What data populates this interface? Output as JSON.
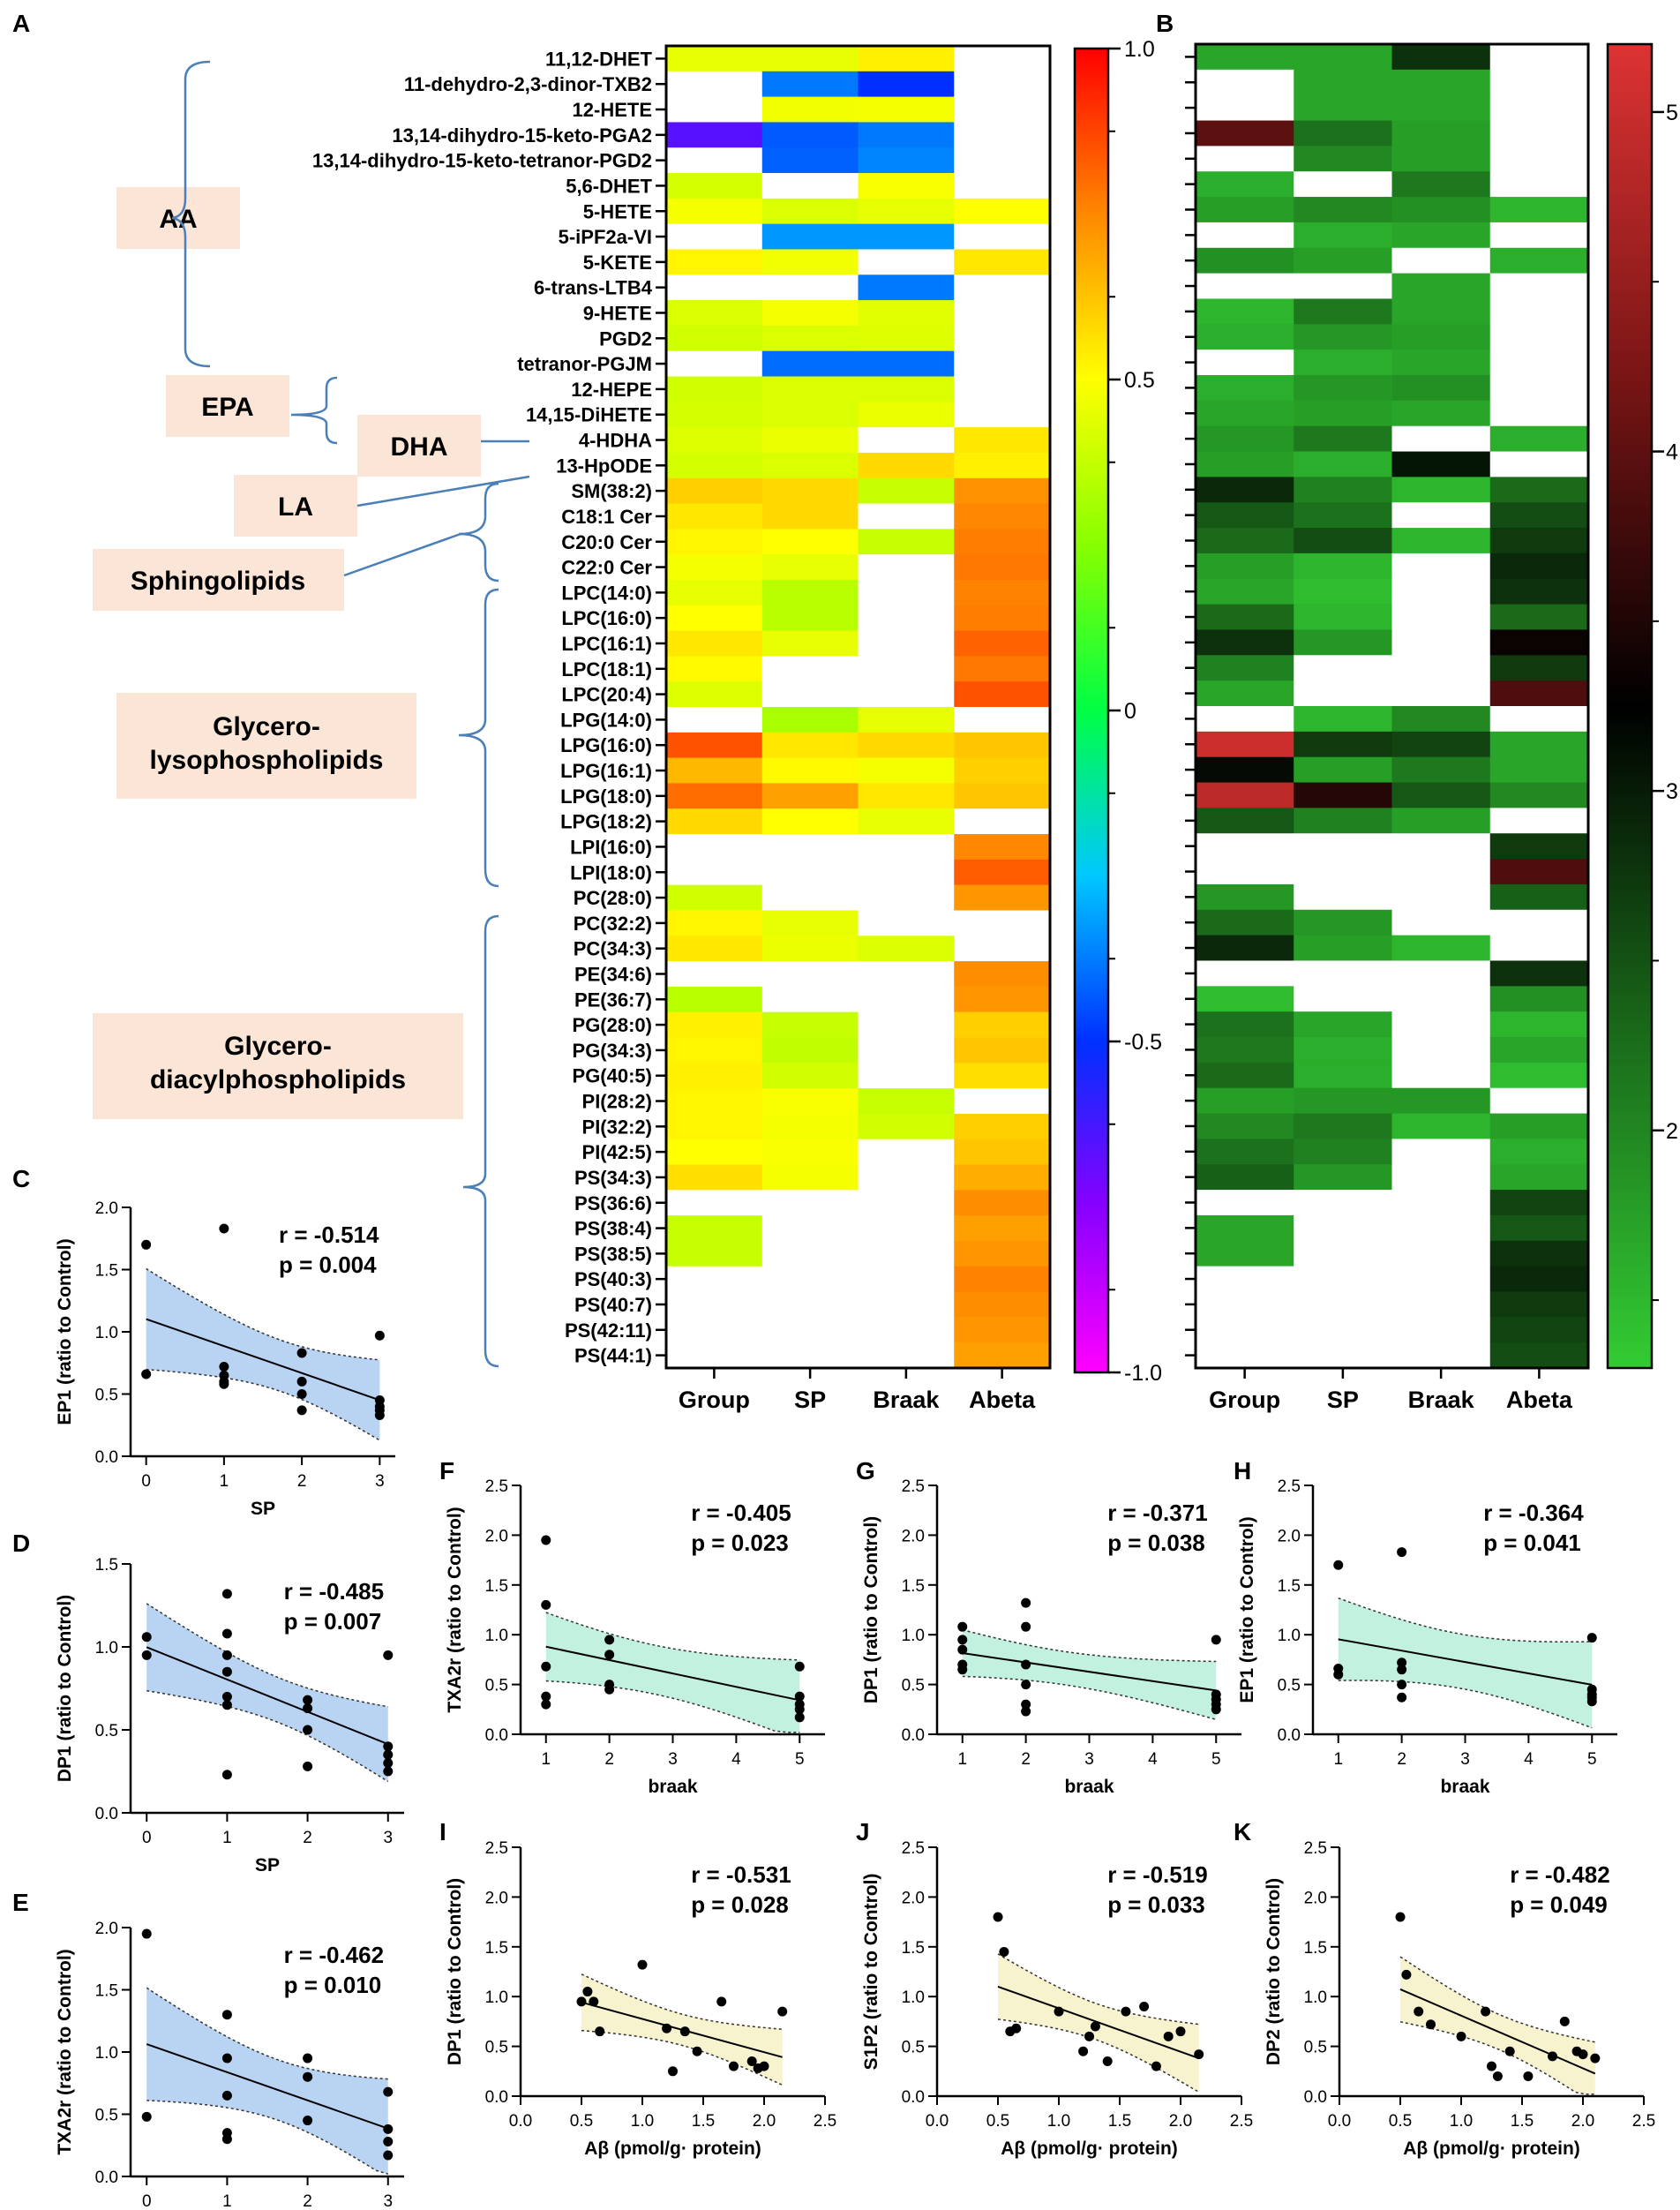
{
  "panel_letters": [
    "A",
    "B",
    "C",
    "D",
    "E",
    "F",
    "G",
    "H",
    "I",
    "J",
    "K"
  ],
  "heatmap": {
    "rows": [
      "11,12-DHET",
      "11-dehydro-2,3-dinor-TXB2",
      "12-HETE",
      "13,14-dihydro-15-keto-PGA2",
      "13,14-dihydro-15-keto-tetranor-PGD2",
      "5,6-DHET",
      "5-HETE",
      "5-iPF2a-VI",
      "5-KETE",
      "6-trans-LTB4",
      "9-HETE",
      "PGD2",
      "tetranor-PGJM",
      "12-HEPE",
      "14,15-DiHETE",
      "4-HDHA",
      "13-HpODE",
      "SM(38:2)",
      "C18:1 Cer",
      "C20:0 Cer",
      "C22:0 Cer",
      "LPC(14:0)",
      "LPC(16:0)",
      "LPC(16:1)",
      "LPC(18:1)",
      "LPC(20:4)",
      "LPG(14:0)",
      "LPG(16:0)",
      "LPG(16:1)",
      "LPG(18:0)",
      "LPG(18:2)",
      "LPI(16:0)",
      "LPI(18:0)",
      "PC(28:0)",
      "PC(32:2)",
      "PC(34:3)",
      "PE(34:6)",
      "PE(36:7)",
      "PG(28:0)",
      "PG(34:3)",
      "PG(40:5)",
      "PI(28:2)",
      "PI(32:2)",
      "PI(42:5)",
      "PS(34:3)",
      "PS(36:6)",
      "PS(38:4)",
      "PS(38:5)",
      "PS(40:3)",
      "PS(40:7)",
      "PS(42:11)",
      "PS(44:1)"
    ],
    "columns": [
      "Group",
      "SP",
      "Braak",
      "Abeta"
    ],
    "correlation_values": [
      [
        0.45,
        0.45,
        0.53,
        null
      ],
      [
        null,
        -0.38,
        -0.5,
        null
      ],
      [
        null,
        0.47,
        0.48,
        null
      ],
      [
        -0.66,
        -0.43,
        -0.38,
        null
      ],
      [
        null,
        -0.42,
        -0.36,
        null
      ],
      [
        0.41,
        null,
        0.49,
        null
      ],
      [
        0.48,
        0.42,
        0.45,
        0.5
      ],
      [
        null,
        -0.33,
        -0.33,
        null
      ],
      [
        0.52,
        0.47,
        null,
        0.55
      ],
      [
        null,
        null,
        -0.38,
        null
      ],
      [
        0.42,
        0.48,
        0.44,
        null
      ],
      [
        0.4,
        0.42,
        0.43,
        null
      ],
      [
        null,
        -0.4,
        -0.4,
        null
      ],
      [
        0.4,
        0.42,
        0.42,
        null
      ],
      [
        0.41,
        0.42,
        0.46,
        null
      ],
      [
        0.43,
        0.46,
        null,
        0.55
      ],
      [
        0.41,
        0.42,
        0.58,
        0.53
      ],
      [
        0.6,
        0.58,
        0.38,
        0.73
      ],
      [
        0.55,
        0.58,
        null,
        0.75
      ],
      [
        0.52,
        0.5,
        0.38,
        0.77
      ],
      [
        0.48,
        0.45,
        null,
        0.78
      ],
      [
        0.45,
        0.35,
        null,
        0.76
      ],
      [
        0.5,
        0.35,
        null,
        0.77
      ],
      [
        0.55,
        0.45,
        null,
        0.82
      ],
      [
        0.51,
        null,
        null,
        0.78
      ],
      [
        0.43,
        null,
        null,
        0.85
      ],
      [
        null,
        0.32,
        0.45,
        null
      ],
      [
        0.85,
        0.55,
        0.58,
        0.62
      ],
      [
        0.65,
        0.51,
        0.48,
        0.6
      ],
      [
        0.8,
        0.7,
        0.55,
        0.62
      ],
      [
        0.58,
        0.5,
        0.45,
        null
      ],
      [
        null,
        null,
        null,
        0.75
      ],
      [
        null,
        null,
        null,
        0.83
      ],
      [
        0.4,
        null,
        null,
        0.72
      ],
      [
        0.52,
        0.45,
        null,
        null
      ],
      [
        0.55,
        0.46,
        0.42,
        null
      ],
      [
        null,
        null,
        null,
        0.74
      ],
      [
        0.35,
        null,
        null,
        0.72
      ],
      [
        0.53,
        0.38,
        null,
        0.6
      ],
      [
        0.52,
        0.37,
        null,
        0.62
      ],
      [
        0.53,
        0.4,
        null,
        0.57
      ],
      [
        0.52,
        0.49,
        0.38,
        null
      ],
      [
        0.52,
        0.48,
        0.4,
        0.6
      ],
      [
        0.5,
        0.49,
        null,
        0.62
      ],
      [
        0.57,
        0.48,
        null,
        0.67
      ],
      [
        null,
        null,
        null,
        0.74
      ],
      [
        0.38,
        null,
        null,
        0.7
      ],
      [
        0.38,
        null,
        null,
        0.72
      ],
      [
        null,
        null,
        null,
        0.76
      ],
      [
        null,
        null,
        null,
        0.74
      ],
      [
        null,
        null,
        null,
        0.72
      ],
      [
        null,
        null,
        null,
        0.7
      ]
    ],
    "colorbar_ticks": [
      "1.0",
      "0.5",
      "0",
      "-0.5",
      "-1.0"
    ]
  },
  "heatmap_b": {
    "columns": [
      "Group",
      "SP",
      "Braak",
      "Abeta"
    ],
    "values": [
      [
        1.8,
        1.8,
        3.2,
        null
      ],
      [
        null,
        1.8,
        1.8,
        null
      ],
      [
        null,
        1.8,
        1.8,
        null
      ],
      [
        4.4,
        2.5,
        1.9,
        null
      ],
      [
        null,
        2.2,
        1.9,
        null
      ],
      [
        1.7,
        null,
        2.4,
        null
      ],
      [
        1.9,
        2.2,
        2.1,
        1.6
      ],
      [
        null,
        1.7,
        1.8,
        null
      ],
      [
        2.1,
        1.9,
        null,
        1.7
      ],
      [
        null,
        null,
        1.8,
        null
      ],
      [
        1.6,
        2.4,
        1.8,
        null
      ],
      [
        1.7,
        2.0,
        1.9,
        null
      ],
      [
        null,
        1.7,
        1.8,
        null
      ],
      [
        1.7,
        2.0,
        2.1,
        null
      ],
      [
        1.8,
        1.9,
        1.8,
        null
      ],
      [
        2.0,
        2.4,
        null,
        1.7
      ],
      [
        1.9,
        1.7,
        3.5,
        null
      ],
      [
        3.3,
        2.3,
        1.6,
        2.6
      ],
      [
        2.8,
        2.5,
        null,
        2.9
      ],
      [
        2.6,
        2.9,
        1.6,
        3.1
      ],
      [
        1.9,
        1.6,
        null,
        3.3
      ],
      [
        1.8,
        1.5,
        null,
        3.2
      ],
      [
        2.6,
        1.6,
        null,
        2.6
      ],
      [
        3.2,
        2.0,
        null,
        3.8
      ],
      [
        2.3,
        null,
        null,
        3.1
      ],
      [
        1.8,
        null,
        null,
        4.3
      ],
      [
        null,
        1.6,
        2.2,
        null
      ],
      [
        5.1,
        3.1,
        3.0,
        1.8
      ],
      [
        3.6,
        1.9,
        2.4,
        1.8
      ],
      [
        5.0,
        4.0,
        2.8,
        2.2
      ],
      [
        2.8,
        2.3,
        1.9,
        null
      ],
      [
        null,
        null,
        null,
        3.1
      ],
      [
        null,
        null,
        null,
        4.3
      ],
      [
        2.0,
        null,
        null,
        2.7
      ],
      [
        2.6,
        2.0,
        null,
        null
      ],
      [
        3.3,
        1.9,
        1.6,
        null
      ],
      [
        null,
        null,
        null,
        3.2
      ],
      [
        1.5,
        null,
        null,
        2.1
      ],
      [
        2.5,
        1.8,
        null,
        1.6
      ],
      [
        2.4,
        1.7,
        null,
        1.8
      ],
      [
        2.6,
        1.7,
        null,
        1.5
      ],
      [
        1.9,
        2.0,
        2.0,
        null
      ],
      [
        2.2,
        2.4,
        1.6,
        1.9
      ],
      [
        2.5,
        2.3,
        null,
        1.7
      ],
      [
        2.7,
        2.0,
        null,
        1.8
      ],
      [
        null,
        null,
        null,
        3.0
      ],
      [
        1.8,
        null,
        null,
        2.8
      ],
      [
        1.8,
        null,
        null,
        3.2
      ],
      [
        null,
        null,
        null,
        3.3
      ],
      [
        null,
        null,
        null,
        3.1
      ],
      [
        null,
        null,
        null,
        3.0
      ],
      [
        null,
        null,
        null,
        2.9
      ]
    ],
    "colorbar_ticks": [
      "5",
      "4",
      "3",
      "2"
    ]
  },
  "lipid_groups": [
    "AA",
    "EPA",
    "DHA",
    "LA",
    "Sphingolipids",
    "Glycero-\nlysophospholipids",
    "Glycero-\ndiacylphospholipids"
  ],
  "scatter_panels": [
    {
      "letter": "C",
      "ylabel": "EP1 (ratio to Control)",
      "xlabel": "SP",
      "xticks": [
        "0",
        "1",
        "2",
        "3"
      ],
      "yticks": [
        "0.0",
        "0.5",
        "1.0",
        "1.5",
        "2.0"
      ],
      "r": "r = -0.514",
      "p": "p = 0.004",
      "fill": "#b9d3f2",
      "x": [
        0,
        0,
        1,
        1,
        1,
        1,
        1,
        2,
        2,
        2,
        2,
        3,
        3,
        3,
        3,
        3
      ],
      "y": [
        1.7,
        0.66,
        1.83,
        0.72,
        0.65,
        0.6,
        0.58,
        0.83,
        0.6,
        0.5,
        0.37,
        0.97,
        0.45,
        0.4,
        0.37,
        0.33
      ]
    },
    {
      "letter": "D",
      "ylabel": "DP1 (ratio to Control)",
      "xlabel": "SP",
      "xticks": [
        "0",
        "1",
        "2",
        "3"
      ],
      "yticks": [
        "0.0",
        "0.5",
        "1.0",
        "1.5"
      ],
      "r": "r = -0.485",
      "p": "p = 0.007",
      "fill": "#b9d3f2",
      "x": [
        0,
        0,
        1,
        1,
        1,
        1,
        1,
        1,
        1,
        2,
        2,
        2,
        2,
        3,
        3,
        3,
        3,
        3
      ],
      "y": [
        1.06,
        0.95,
        1.32,
        1.08,
        0.95,
        0.85,
        0.7,
        0.65,
        0.23,
        0.68,
        0.63,
        0.5,
        0.28,
        0.95,
        0.4,
        0.35,
        0.3,
        0.25
      ]
    },
    {
      "letter": "E",
      "ylabel": "TXA2r (ratio to Control)",
      "xlabel": "SP",
      "xticks": [
        "0",
        "1",
        "2",
        "3"
      ],
      "yticks": [
        "0.0",
        "0.5",
        "1.0",
        "1.5",
        "2.0"
      ],
      "r": "r = -0.462",
      "p": "p = 0.010",
      "fill": "#b9d3f2",
      "x": [
        0,
        0,
        1,
        1,
        1,
        1,
        1,
        2,
        2,
        2,
        3,
        3,
        3,
        3
      ],
      "y": [
        1.95,
        0.48,
        1.3,
        0.95,
        0.65,
        0.35,
        0.3,
        0.95,
        0.8,
        0.45,
        0.68,
        0.38,
        0.28,
        0.17
      ]
    },
    {
      "letter": "F",
      "ylabel": "TXA2r (ratio to Control)",
      "xlabel": "braak",
      "xticks": [
        "1",
        "2",
        "3",
        "4",
        "5"
      ],
      "yticks": [
        "0.0",
        "0.5",
        "1.0",
        "1.5",
        "2.0",
        "2.5"
      ],
      "r": "r = -0.405",
      "p": "p = 0.023",
      "fill": "#c2f2df",
      "x": [
        1,
        1,
        1,
        1,
        1,
        2,
        2,
        2,
        2,
        5,
        5,
        5,
        5,
        5
      ],
      "y": [
        1.95,
        1.3,
        0.68,
        0.38,
        0.3,
        0.95,
        0.8,
        0.5,
        0.45,
        0.68,
        0.38,
        0.3,
        0.25,
        0.17
      ]
    },
    {
      "letter": "G",
      "ylabel": "DP1 (ratio to Control)",
      "xlabel": "braak",
      "xticks": [
        "1",
        "2",
        "3",
        "4",
        "5"
      ],
      "yticks": [
        "0.0",
        "0.5",
        "1.0",
        "1.5",
        "2.0",
        "2.5"
      ],
      "r": "r = -0.371",
      "p": "p = 0.038",
      "fill": "#c2f2df",
      "x": [
        1,
        1,
        1,
        1,
        1,
        2,
        2,
        2,
        2,
        2,
        2,
        5,
        5,
        5,
        5,
        5
      ],
      "y": [
        1.08,
        0.95,
        0.85,
        0.7,
        0.65,
        1.32,
        1.08,
        0.7,
        0.5,
        0.3,
        0.23,
        0.95,
        0.4,
        0.35,
        0.3,
        0.25
      ]
    },
    {
      "letter": "H",
      "ylabel": "EP1 (ratio to Control)",
      "xlabel": "braak",
      "xticks": [
        "1",
        "2",
        "3",
        "4",
        "5"
      ],
      "yticks": [
        "0.0",
        "0.5",
        "1.0",
        "1.5",
        "2.0",
        "2.5"
      ],
      "r": "r = -0.364",
      "p": "p = 0.041",
      "fill": "#c2f2df",
      "x": [
        1,
        1,
        1,
        2,
        2,
        2,
        2,
        2,
        5,
        5,
        5,
        5,
        5
      ],
      "y": [
        1.7,
        0.66,
        0.6,
        1.83,
        0.72,
        0.65,
        0.5,
        0.37,
        0.97,
        0.45,
        0.4,
        0.37,
        0.33
      ]
    },
    {
      "letter": "I",
      "ylabel": "DP1 (ratio to Control)",
      "xlabel": "Aβ (pmol/g· protein)",
      "xticks": [
        "0.0",
        "0.5",
        "1.0",
        "1.5",
        "2.0",
        "2.5"
      ],
      "yticks": [
        "0.0",
        "0.5",
        "1.0",
        "1.5",
        "2.0",
        "2.5"
      ],
      "r": "r = -0.531",
      "p": "p = 0.028",
      "fill": "#f7f3cf",
      "x": [
        0.5,
        0.55,
        0.6,
        0.65,
        1.0,
        1.2,
        1.25,
        1.35,
        1.45,
        1.65,
        1.75,
        1.9,
        1.95,
        2.0,
        2.15
      ],
      "y": [
        0.95,
        1.05,
        0.95,
        0.65,
        1.32,
        0.68,
        0.25,
        0.65,
        0.45,
        0.95,
        0.3,
        0.35,
        0.28,
        0.3,
        0.85
      ]
    },
    {
      "letter": "J",
      "ylabel": "S1P2 (ratio to Control)",
      "xlabel": "Aβ (pmol/g· protein)",
      "xticks": [
        "0.0",
        "0.5",
        "1.0",
        "1.5",
        "2.0",
        "2.5"
      ],
      "yticks": [
        "0.0",
        "0.5",
        "1.0",
        "1.5",
        "2.0",
        "2.5"
      ],
      "r": "r = -0.519",
      "p": "p = 0.033",
      "fill": "#f7f3cf",
      "x": [
        0.5,
        0.55,
        0.6,
        0.65,
        1.0,
        1.2,
        1.25,
        1.3,
        1.4,
        1.55,
        1.7,
        1.8,
        1.9,
        2.0,
        2.15
      ],
      "y": [
        1.8,
        1.45,
        0.65,
        0.68,
        0.85,
        0.45,
        0.6,
        0.7,
        0.35,
        0.85,
        0.9,
        0.3,
        0.6,
        0.65,
        0.42
      ]
    },
    {
      "letter": "K",
      "ylabel": "DP2 (ratio to Control)",
      "xlabel": "Aβ (pmol/g· protein)",
      "xticks": [
        "0.0",
        "0.5",
        "1.0",
        "1.5",
        "2.0",
        "2.5"
      ],
      "yticks": [
        "0.0",
        "0.5",
        "1.0",
        "1.5",
        "2.0",
        "2.5"
      ],
      "r": "r = -0.482",
      "p": "p = 0.049",
      "fill": "#f7f3cf",
      "x": [
        0.5,
        0.55,
        0.65,
        0.75,
        1.0,
        1.2,
        1.25,
        1.3,
        1.4,
        1.55,
        1.75,
        1.85,
        1.95,
        2.0,
        2.1
      ],
      "y": [
        1.8,
        1.22,
        0.85,
        0.72,
        0.6,
        0.85,
        0.3,
        0.2,
        0.45,
        0.2,
        0.4,
        0.75,
        0.45,
        0.42,
        0.38
      ]
    }
  ]
}
